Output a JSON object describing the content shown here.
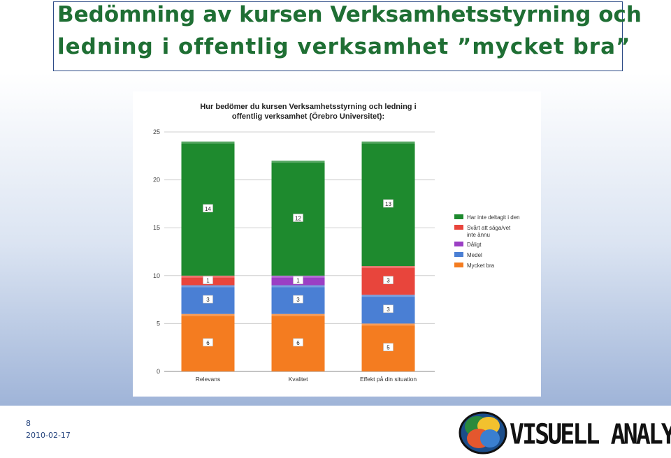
{
  "slide": {
    "title_line1": "Bedömning av kursen Verksamhetsstyrning och",
    "title_line2": "ledning i offentlig verksamhet    ”mycket bra”",
    "page_number": "8",
    "date": "2010-02-17",
    "logo_text": "VISUELL ANALYS"
  },
  "chart_data": {
    "type": "bar",
    "stacked": true,
    "title": "Hur bedömer du kursen Verksamhetsstyrning och ledning i offentlig verksamhet (Örebro Universitet):",
    "title_lines": [
      "Hur bedömer du kursen Verksamhetsstyrning och ledning i",
      "offentlig verksamhet (Örebro Universitet):"
    ],
    "categories": [
      "Relevans",
      "Kvalitet",
      "Effekt på din situation"
    ],
    "ylim": [
      0,
      25
    ],
    "yticks": [
      0,
      5,
      10,
      15,
      20,
      25
    ],
    "grid": true,
    "legend_position": "right",
    "series": [
      {
        "name": "Mycket bra",
        "color": "#f47c20",
        "values": [
          6,
          6,
          5
        ]
      },
      {
        "name": "Medel",
        "color": "#4a7fd4",
        "values": [
          3,
          3,
          3
        ]
      },
      {
        "name": "Dåligt",
        "color": "#9b3fc4",
        "values": [
          0,
          1,
          0
        ]
      },
      {
        "name": "Svårt att säga/vet inte ännu",
        "color": "#e8453c",
        "values": [
          1,
          0,
          3
        ]
      },
      {
        "name": "Har inte deltagit i den",
        "color": "#1e8a2e",
        "values": [
          14,
          12,
          13
        ]
      }
    ],
    "legend_order": [
      "Har inte deltagit i den",
      "Svårt att säga/vet inte ännu",
      "Dåligt",
      "Medel",
      "Mycket bra"
    ]
  }
}
